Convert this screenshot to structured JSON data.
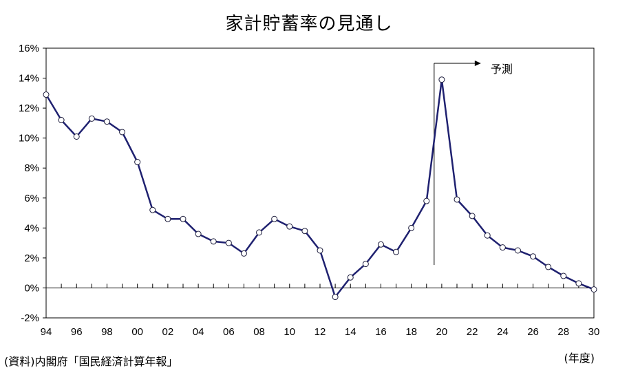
{
  "chart_data": {
    "type": "line",
    "title": "家計貯蓄率の見通し",
    "source": "(資料)内閣府「国民経済計算年報」",
    "unit_label": "(年度)",
    "forecast_label": "予測",
    "forecast_from_year": 2019.5,
    "x_tick_labels": [
      "94",
      "96",
      "98",
      "00",
      "02",
      "04",
      "06",
      "08",
      "10",
      "12",
      "14",
      "16",
      "18",
      "20",
      "22",
      "24",
      "26",
      "28",
      "30"
    ],
    "x_tick_years": [
      1994,
      1996,
      1998,
      2000,
      2002,
      2004,
      2006,
      2008,
      2010,
      2012,
      2014,
      2016,
      2018,
      2020,
      2022,
      2024,
      2026,
      2028,
      2030
    ],
    "y_tick_labels": [
      "16%",
      "14%",
      "12%",
      "10%",
      "8%",
      "6%",
      "4%",
      "2%",
      "0%",
      "-2%"
    ],
    "y_tick_values": [
      16,
      14,
      12,
      10,
      8,
      6,
      4,
      2,
      0,
      -2
    ],
    "xlim": [
      1994,
      2030
    ],
    "ylim": [
      -2,
      16
    ],
    "x": [
      1994,
      1995,
      1996,
      1997,
      1998,
      1999,
      2000,
      2001,
      2002,
      2003,
      2004,
      2005,
      2006,
      2007,
      2008,
      2009,
      2010,
      2011,
      2012,
      2013,
      2014,
      2015,
      2016,
      2017,
      2018,
      2019,
      2020,
      2021,
      2022,
      2023,
      2024,
      2025,
      2026,
      2027,
      2028,
      2029,
      2030
    ],
    "values": [
      12.9,
      11.2,
      10.1,
      11.3,
      11.1,
      10.4,
      8.4,
      5.2,
      4.6,
      4.6,
      3.6,
      3.1,
      3.0,
      2.3,
      3.7,
      4.6,
      4.1,
      3.8,
      2.5,
      -0.6,
      0.7,
      1.6,
      2.9,
      2.4,
      4.0,
      5.8,
      13.9,
      5.9,
      4.8,
      3.5,
      2.7,
      2.5,
      2.1,
      1.4,
      0.8,
      0.3,
      -0.1
    ],
    "line_color": "#1f2170",
    "marker_fill": "#ffffff",
    "grid": false
  }
}
